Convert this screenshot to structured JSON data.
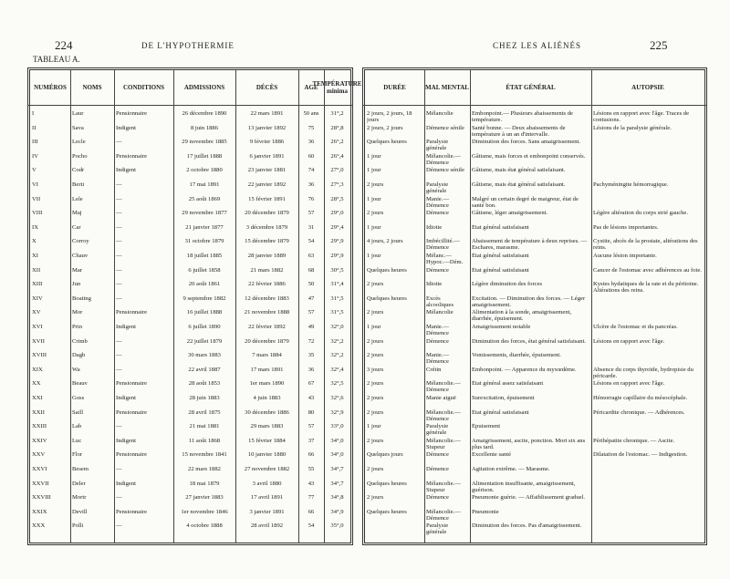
{
  "header": {
    "left_page": "224",
    "left_title": "DE L'HYPOTHERMIE",
    "right_title": "CHEZ LES ALIÉNÉS",
    "right_page": "225"
  },
  "table": {
    "caption": "TABLEAU A.",
    "columns": [
      "NUMÉROS",
      "NOMS",
      "CONDITIONS",
      "ADMISSIONS",
      "DÉCÈS",
      "AGE",
      "TEMPÉRATURE minima",
      "DURÉE",
      "MAL MENTAL",
      "ÉTAT GÉNÉRAL",
      "AUTOPSIE"
    ],
    "rows": [
      [
        "I",
        "Laur",
        "Pensionnaire",
        "26 décembre 1890",
        "22 mars 1891",
        "50 ans",
        "31°,2",
        "2 jours, 2 jours, 18 jours",
        "Mélancolie",
        "Embonpoint.— Plusieurs abaissements de température.",
        "Lésions en rapport avec l'âge. Traces de contusions."
      ],
      [
        "II",
        "Sava",
        "Indigent",
        "8 juin 1886",
        "13 janvier 1892",
        "75",
        "28°,8",
        "2 jours, 2 jours",
        "Démence sénile",
        "Santé bonne. — Deux abaissements de température à un an d'intervalle.",
        "Lésions de la paralysie générale."
      ],
      [
        "III",
        "Lecle",
        "—",
        "29 novembre 1885",
        "9 février 1886",
        "36",
        "26°,2",
        "Quelques heures",
        "Paralysie générale",
        "Diminution des forces. Sans amaigrissement.",
        null
      ],
      [
        "IV",
        "Pocho",
        "Pensionnaire",
        "17 juillet 1888",
        "6 janvier 1891",
        "60",
        "26°,4",
        "1 jour",
        "Mélancolie.— Démence",
        "Gâtisme, mais forces et embonpoint conservés.",
        null
      ],
      [
        "V",
        "Codr",
        "Indigent",
        "2 octobre 1880",
        "23 janvier 1881",
        "74",
        "27°,0",
        "1 jour",
        "Démence sénile",
        "Gâtisme, mais état général satisfaisant.",
        null
      ],
      [
        "VI",
        "Berti",
        "—",
        "17 mai 1891",
        "22 janvier 1892",
        "36",
        "27°,3",
        "2 jours",
        "Paralysie générale",
        "Gâtisme, mais état général satisfaisant.",
        "Pachyméningite hémorragique."
      ],
      [
        "VII",
        "Lele",
        "—",
        "25 août 1869",
        "15 février 1891",
        "76",
        "28°,5",
        "1 jour",
        "Manie.— Démence",
        "Malgré un certain degré de maigreur, état de santé bon.",
        null
      ],
      [
        "VIII",
        "Maj",
        "—",
        "29 novembre 1877",
        "20 décembre 1879",
        "57",
        "29°,0",
        "2 jours",
        "Démence",
        "Gâtisme, léger amaigrissement.",
        "Légère altération du corps strié gauche."
      ],
      [
        "IX",
        "Car",
        "—",
        "21 janvier 1877",
        "3 décembre 1879",
        "31",
        "29°,4",
        "1 jour",
        "Idiotie",
        "État général satisfaisant",
        "Pas de lésions importantes."
      ],
      [
        "X",
        "Corroy",
        "—",
        "31 octobre 1879",
        "15 décembre 1879",
        "54",
        "29°,9",
        "4 jours, 2 jours",
        "Imbécillité.— Démence",
        "Abaissement de température à deux reprises. — Eschares, marasme.",
        "Cystite, abcès de la prostate, altérations des reins."
      ],
      [
        "XI",
        "Chauv",
        "—",
        "18 juillet 1885",
        "28 janvier 1889",
        "63",
        "29°,9",
        "1 jour",
        "Mélanc.—Hypoc.—Dém.",
        "État général satisfaisant",
        "Aucune lésion importante."
      ],
      [
        "XII",
        "Mar",
        "—",
        "6 juillet 1858",
        "21 mars 1882",
        "68",
        "30°,5",
        "Quelques heures",
        "Démence",
        "État général satisfaisant",
        "Cancer de l'estomac avec adhérences au foie."
      ],
      [
        "XIII",
        "Jun",
        "—",
        "20 août 1861",
        "22 février 1886",
        "50",
        "31°,4",
        "2 jours",
        "Idiotie",
        "Légère diminution des forces",
        "Kystes hydatiques de la rate et du péritoine. Altérations des reins."
      ],
      [
        "XIV",
        "Boating",
        "—",
        "9 septembre 1882",
        "12 décembre 1883",
        "47",
        "31°,5",
        "Quelques heures",
        "Excès alcooliques",
        "Excitation. — Diminution des forces. — Léger amaigrissement.",
        null
      ],
      [
        "XV",
        "Mor",
        "Pensionnaire",
        "16 juillet 1888",
        "21 novembre 1888",
        "57",
        "31°,5",
        "2 jours",
        "Mélancolie",
        "Alimentation à la sonde, amaigrissement, diarrhée, épuisement.",
        null
      ],
      [
        "XVI",
        "Prin",
        "Indigent",
        "6 juillet 1890",
        "22 février 1892",
        "49",
        "32°,0",
        "1 jour",
        "Manie.— Démence",
        "Amaigrissement notable",
        "Ulcère de l'estomac et du pancréas."
      ],
      [
        "XVII",
        "Crimb",
        "—",
        "22 juillet 1879",
        "20 décembre 1879",
        "72",
        "32°,2",
        "2 jours",
        "Démence",
        "Diminution des forces, état général satisfaisant.",
        "Lésions en rapport avec l'âge."
      ],
      [
        "XVIII",
        "Dagb",
        "—",
        "30 mars 1883",
        "7 mars 1884",
        "35",
        "32°,2",
        "2 jours",
        "Manie.— Démence",
        "Vomissements, diarrhée, épuisement.",
        null
      ],
      [
        "XIX",
        "Wa",
        "—",
        "22 avril 1887",
        "17 mars 1891",
        "36",
        "32°,4",
        "3 jours",
        "Crétin",
        "Embonpoint. — Apparence du myxœdème.",
        "Absence du corps thyroïde, hydropisie du péricarde."
      ],
      [
        "XX",
        "Beauv",
        "Pensionnaire",
        "28 août 1853",
        "1er mars 1890",
        "67",
        "32°,5",
        "2 jours",
        "Mélancolie.— Démence",
        "État général assez satisfaisant",
        "Lésions en rapport avec l'âge."
      ],
      [
        "XXI",
        "Goss",
        "Indigent",
        "28 juin 1883",
        "4 juin 1883",
        "43",
        "32°,6",
        "2 jours",
        "Manie aiguë",
        "Surexcitation, épuisement",
        "Hémorragie capillaire du mésocéphale."
      ],
      [
        "XXII",
        "Saill",
        "Pensionnaire",
        "28 avril 1875",
        "30 décembre 1886",
        "80",
        "32°,9",
        "2 jours",
        "Mélancolie.— Démence",
        "État général satisfaisant",
        "Péricardite chronique. — Adhérences."
      ],
      [
        "XXIII",
        "Lab",
        "—",
        "21 mai 1881",
        "29 mars 1883",
        "57",
        "33°,0",
        "1 jour",
        "Paralysie générale",
        "Épuisement",
        null
      ],
      [
        "XXIV",
        "Luc",
        "Indigent",
        "11 août 1868",
        "15 février 1884",
        "37",
        "34°,0",
        "2 jours",
        "Mélancolie.— Stupeur",
        "Amaigrissement, ascite, ponction. Mort six ans plus tard.",
        "Périhépatite chronique. — Ascite."
      ],
      [
        "XXV",
        "Flor",
        "Pensionnaire",
        "15 novembre 1841",
        "10 janvier 1880",
        "66",
        "34°,0",
        "Quelques jours",
        "Démence",
        "Excellente santé",
        "Dilatation de l'estomac. — Indigestion."
      ],
      [
        "XXVI",
        "Besem",
        "—",
        "22 mars 1882",
        "27 novembre 1882",
        "55",
        "34°,7",
        "2 jours",
        "Démence",
        "Agitation extrême. — Marasme.",
        null
      ],
      [
        "XXVII",
        "Deler",
        "Indigent",
        "18 mai 1879",
        "3 avril 1880",
        "43",
        "34°,7",
        "Quelques heures",
        "Mélancolie.— Stupeur",
        "Alimentation insuffisante, amaigrissement, guérison.",
        null
      ],
      [
        "XXVIII",
        "Mortr",
        "—",
        "27 janvier 1883",
        "17 avril 1891",
        "77",
        "34°,8",
        "2 jours",
        "Démence",
        "Pneumonie guérie. — Affaiblissement graduel.",
        null
      ],
      [
        "XXIX",
        "Devill",
        "Pensionnaire",
        "1er novembre 1846",
        "3 janvier 1891",
        "66",
        "34°,9",
        "Quelques heures",
        "Mélancolie.— Démence",
        "Pneumonie",
        null
      ],
      [
        "XXX",
        "Polli",
        "—",
        "4 octobre 1888",
        "28 avril 1892",
        "54",
        "35°,0",
        null,
        "Paralysie générale",
        "Diminution des forces. Pas d'amaigrissement.",
        null
      ]
    ]
  }
}
